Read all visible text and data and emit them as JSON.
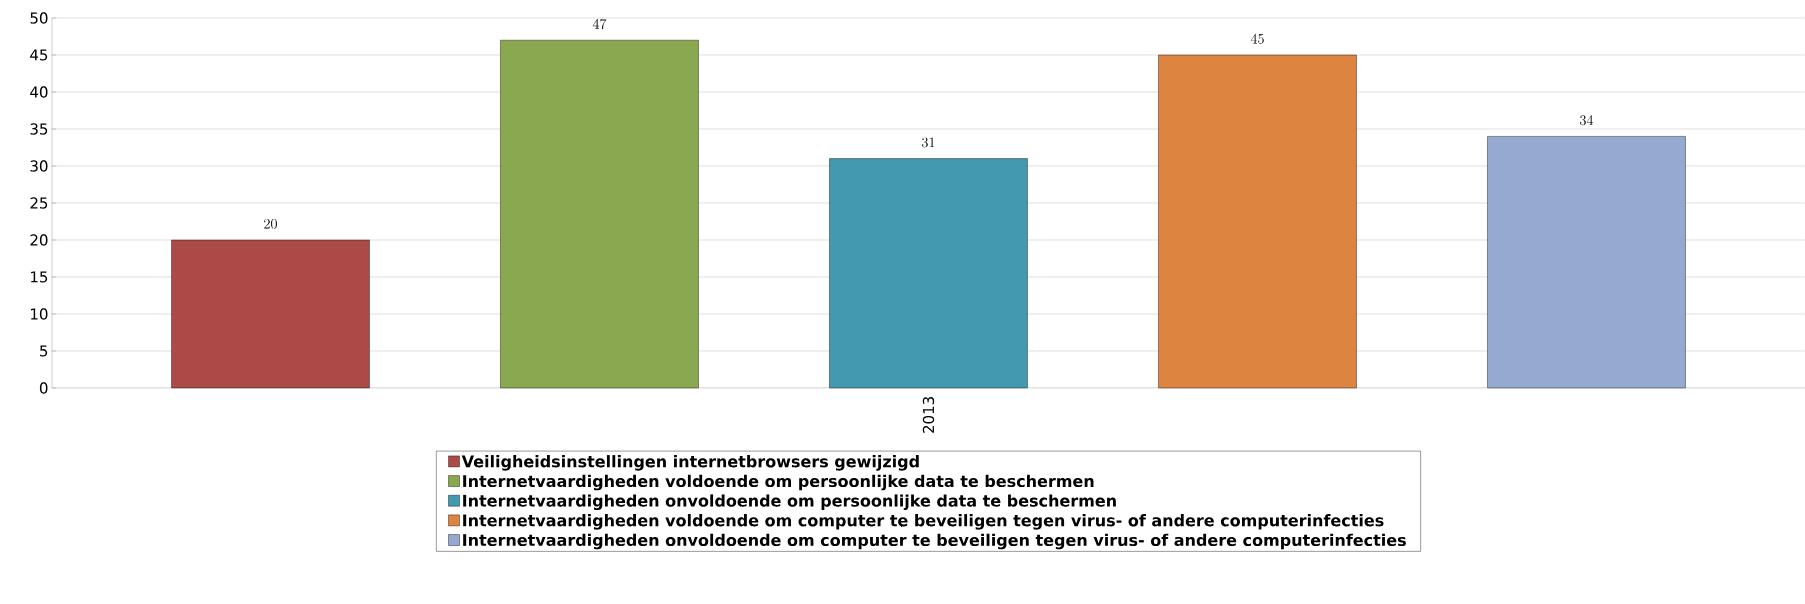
{
  "chart_data": {
    "type": "bar",
    "categories": [
      "2013"
    ],
    "series": [
      {
        "name": "Veiligheidsinstellingen internetbrowsers gewijzigd",
        "color": "#ab4a47",
        "values": [
          20
        ]
      },
      {
        "name": "Internetvaardigheden voldoende om persoonlijke data te beschermen",
        "color": "#8aa84f",
        "values": [
          47
        ]
      },
      {
        "name": "Internetvaardigheden onvoldoende om persoonlijke data te beschermen",
        "color": "#4399b0",
        "values": [
          31
        ]
      },
      {
        "name": "Internetvaardigheden voldoende om computer te beveiligen tegen virus- of andere computerinfecties",
        "color": "#dc8440",
        "values": [
          45
        ]
      },
      {
        "name": "Internetvaardigheden onvoldoende om computer te beveiligen tegen virus- of andere computerinfecties",
        "color": "#95a9d1",
        "values": [
          34
        ]
      }
    ],
    "ylim": [
      0,
      50
    ],
    "yticks": [
      0,
      5,
      10,
      15,
      20,
      25,
      30,
      35,
      40,
      45,
      50
    ],
    "grid": "y",
    "legend": "bottom",
    "data_labels": true
  }
}
